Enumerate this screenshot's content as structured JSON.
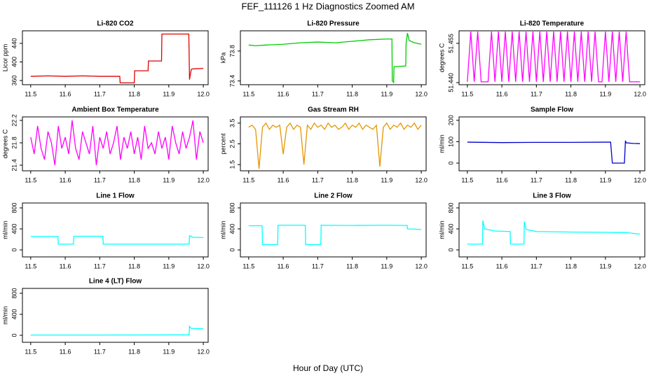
{
  "title": "FEF_111126  1 Hz Diagnostics Zoomed AM",
  "x_label": "Hour of Day (UTC)",
  "chart_data": [
    {
      "type": "line",
      "title": "Li-820 CO2",
      "y_label": "Licor ppm",
      "color": "#e00000",
      "x": [
        11.5,
        11.55,
        11.6,
        11.65,
        11.7,
        11.758,
        11.759,
        11.8,
        11.801,
        11.84,
        11.841,
        11.879,
        11.88,
        11.958,
        11.96,
        11.965,
        11.97,
        12.0
      ],
      "values": [
        369,
        370,
        369,
        370,
        369,
        369,
        355,
        355,
        381,
        381,
        402,
        402,
        460,
        460,
        362,
        384,
        385,
        386
      ],
      "xlim": [
        11.476,
        12.014
      ],
      "xticks": [
        11.5,
        11.6,
        11.7,
        11.8,
        11.9,
        {
          "value": 12,
          "label": "12.0"
        }
      ],
      "ylim": [
        351,
        467
      ],
      "yticks": [
        360,
        400,
        440
      ]
    },
    {
      "type": "line",
      "title": "Li-820 Pressure",
      "y_label": "kPa",
      "color": "#00cc00",
      "x": [
        11.5,
        11.52,
        11.55,
        11.6,
        11.65,
        11.7,
        11.75,
        11.8,
        11.85,
        11.9,
        11.915,
        11.916,
        11.92,
        11.921,
        11.955,
        11.956,
        11.96,
        11.965,
        11.98,
        12.0
      ],
      "values": [
        73.88,
        73.87,
        73.88,
        73.89,
        73.91,
        73.92,
        73.91,
        73.93,
        73.95,
        73.96,
        73.96,
        73.4,
        73.38,
        73.59,
        73.6,
        73.9,
        74.04,
        73.94,
        73.91,
        73.89
      ],
      "xlim": [
        11.476,
        12.014
      ],
      "xticks": [
        11.5,
        11.6,
        11.7,
        11.8,
        11.9,
        {
          "value": 12,
          "label": "12.0"
        }
      ],
      "ylim": [
        73.35,
        74.07
      ],
      "yticks": [
        73.4,
        73.8
      ]
    },
    {
      "type": "line",
      "title": "Li-820 Temperature",
      "y_label": "degrees C",
      "color": "#ff00ff",
      "x": [
        11.5,
        11.51,
        11.52,
        11.53,
        11.54,
        11.55,
        11.56,
        11.57,
        11.58,
        11.59,
        11.6,
        11.61,
        11.62,
        11.63,
        11.64,
        11.65,
        11.66,
        11.67,
        11.68,
        11.69,
        11.7,
        11.71,
        11.72,
        11.73,
        11.74,
        11.75,
        11.76,
        11.77,
        11.78,
        11.79,
        11.8,
        11.81,
        11.82,
        11.83,
        11.84,
        11.85,
        11.86,
        11.87,
        11.88,
        11.89,
        11.9,
        11.91,
        11.92,
        11.93,
        11.94,
        11.95,
        11.96,
        11.97,
        11.98,
        11.99,
        12.0
      ],
      "values": [
        51.4403,
        51.4595,
        51.4403,
        51.4595,
        51.4403,
        51.4403,
        51.4403,
        51.4595,
        51.4403,
        51.4595,
        51.4403,
        51.4595,
        51.4403,
        51.4595,
        51.4403,
        51.4595,
        51.4403,
        51.4595,
        51.4403,
        51.4595,
        51.4403,
        51.4595,
        51.4403,
        51.4595,
        51.4403,
        51.4595,
        51.4403,
        51.4595,
        51.4403,
        51.4595,
        51.4403,
        51.4595,
        51.4403,
        51.4595,
        51.4403,
        51.4595,
        51.4403,
        51.4595,
        51.4403,
        51.4403,
        51.4595,
        51.4403,
        51.4595,
        51.4403,
        51.4595,
        51.4403,
        51.4595,
        51.4403,
        51.4403,
        51.4403,
        51.4403
      ],
      "xlim": [
        11.476,
        12.014
      ],
      "xticks": [
        11.5,
        11.6,
        11.7,
        11.8,
        11.9,
        {
          "value": 12,
          "label": "12.0"
        }
      ],
      "ylim": [
        51.4392,
        51.4598
      ],
      "yticks": [
        {
          "value": 51.44,
          "label": "51.440"
        },
        51.455
      ]
    },
    {
      "type": "line",
      "title": "Ambient Box Temperature",
      "y_label": "degrees C",
      "color": "#ff00ff",
      "x": [
        11.5,
        11.51,
        11.52,
        11.53,
        11.54,
        11.55,
        11.56,
        11.57,
        11.58,
        11.59,
        11.6,
        11.61,
        11.62,
        11.63,
        11.64,
        11.65,
        11.66,
        11.67,
        11.68,
        11.69,
        11.7,
        11.71,
        11.72,
        11.73,
        11.74,
        11.75,
        11.76,
        11.77,
        11.78,
        11.79,
        11.8,
        11.81,
        11.82,
        11.83,
        11.84,
        11.85,
        11.86,
        11.87,
        11.88,
        11.89,
        11.9,
        11.91,
        11.92,
        11.93,
        11.94,
        11.95,
        11.96,
        11.97,
        11.98,
        11.99,
        12.0
      ],
      "values": [
        21.9,
        21.6,
        22.1,
        21.7,
        21.5,
        22.0,
        21.8,
        21.4,
        22.1,
        21.7,
        21.9,
        21.6,
        22.2,
        21.7,
        21.5,
        22.0,
        21.8,
        21.6,
        22.1,
        21.4,
        21.9,
        21.7,
        22.0,
        21.6,
        21.8,
        22.1,
        21.5,
        21.9,
        21.7,
        22.0,
        21.6,
        21.9,
        21.5,
        22.1,
        21.7,
        21.8,
        21.6,
        22.0,
        21.7,
        21.9,
        21.5,
        22.1,
        21.8,
        21.6,
        22.0,
        21.7,
        21.9,
        22.2,
        21.5,
        22.0,
        21.8
      ],
      "xlim": [
        11.476,
        12.014
      ],
      "xticks": [
        11.5,
        11.6,
        11.7,
        11.8,
        11.9,
        {
          "value": 12,
          "label": "12.0"
        }
      ],
      "ylim": [
        21.3,
        22.2625
      ],
      "yticks": [
        21.4,
        21.8,
        22.2
      ]
    },
    {
      "type": "line",
      "title": "Gas Stream RH",
      "y_label": "percent",
      "color": "#e69500",
      "x": [
        11.5,
        11.51,
        11.52,
        11.53,
        11.54,
        11.55,
        11.56,
        11.57,
        11.58,
        11.59,
        11.6,
        11.61,
        11.62,
        11.63,
        11.64,
        11.65,
        11.66,
        11.67,
        11.68,
        11.69,
        11.7,
        11.71,
        11.72,
        11.73,
        11.74,
        11.75,
        11.76,
        11.77,
        11.78,
        11.79,
        11.8,
        11.81,
        11.82,
        11.83,
        11.84,
        11.85,
        11.86,
        11.87,
        11.88,
        11.89,
        11.9,
        11.91,
        11.92,
        11.93,
        11.94,
        11.95,
        11.96,
        11.97,
        11.98,
        11.99,
        12.0
      ],
      "values": [
        3.3,
        3.4,
        3.2,
        1.3,
        3.3,
        3.5,
        3.2,
        3.4,
        3.3,
        3.4,
        2.0,
        3.3,
        3.5,
        3.2,
        3.4,
        3.3,
        1.5,
        3.4,
        3.2,
        3.5,
        3.3,
        3.4,
        3.2,
        3.5,
        3.3,
        3.4,
        3.2,
        3.3,
        3.5,
        3.2,
        3.4,
        3.3,
        3.5,
        3.2,
        3.4,
        3.3,
        3.2,
        3.4,
        1.4,
        3.3,
        3.5,
        3.2,
        3.4,
        3.3,
        3.5,
        3.2,
        3.4,
        3.3,
        3.5,
        3.2,
        3.4
      ],
      "xlim": [
        11.476,
        12.014
      ],
      "xticks": [
        11.5,
        11.6,
        11.7,
        11.8,
        11.9,
        {
          "value": 12,
          "label": "12.0"
        }
      ],
      "ylim": [
        1.2,
        3.8
      ],
      "yticks": [
        1.5,
        2.5,
        3.5
      ]
    },
    {
      "type": "line",
      "title": "Sample Flow",
      "y_label": "ml/min",
      "color": "#0000cc",
      "x": [
        11.5,
        11.6,
        11.7,
        11.8,
        11.9,
        11.915,
        11.92,
        11.955,
        11.958,
        11.96,
        11.98,
        12.0
      ],
      "values": [
        98,
        96,
        97,
        97,
        98,
        98,
        0,
        0,
        105,
        95,
        92,
        91
      ],
      "xlim": [
        11.476,
        12.014
      ],
      "xticks": [
        11.5,
        11.6,
        11.7,
        11.8,
        11.9,
        {
          "value": 12,
          "label": "12.0"
        }
      ],
      "ylim": [
        -36,
        216
      ],
      "yticks": [
        0,
        100,
        200
      ]
    },
    {
      "type": "line",
      "title": "Line 1 Flow",
      "y_label": "ml/min",
      "color": "#00ffff",
      "x": [
        11.5,
        11.579,
        11.58,
        11.624,
        11.625,
        11.709,
        11.71,
        11.959,
        11.96,
        11.97,
        12.0
      ],
      "values": [
        255,
        255,
        110,
        110,
        260,
        260,
        110,
        110,
        270,
        240,
        235
      ],
      "xlim": [
        11.476,
        12.014
      ],
      "xticks": [
        11.5,
        11.6,
        11.7,
        11.8,
        11.9,
        {
          "value": 12,
          "label": "12.0"
        }
      ],
      "ylim": [
        -133,
        893
      ],
      "yticks": [
        0,
        400,
        800
      ]
    },
    {
      "type": "line",
      "title": "Line 2 Flow",
      "y_label": "ml/min",
      "color": "#00ffff",
      "x": [
        11.5,
        11.539,
        11.54,
        11.584,
        11.585,
        11.664,
        11.665,
        11.709,
        11.71,
        11.8,
        11.9,
        11.959,
        11.96,
        12.0
      ],
      "values": [
        460,
        460,
        100,
        100,
        470,
        470,
        100,
        100,
        470,
        465,
        470,
        465,
        400,
        390
      ],
      "xlim": [
        11.476,
        12.014
      ],
      "xticks": [
        11.5,
        11.6,
        11.7,
        11.8,
        11.9,
        {
          "value": 12,
          "label": "12.0"
        }
      ],
      "ylim": [
        -133,
        893
      ],
      "yticks": [
        0,
        400,
        800
      ]
    },
    {
      "type": "line",
      "title": "Line 3 Flow",
      "y_label": "ml/min",
      "color": "#00ffff",
      "x": [
        11.5,
        11.544,
        11.545,
        11.55,
        11.58,
        11.624,
        11.625,
        11.664,
        11.665,
        11.67,
        11.7,
        11.8,
        11.9,
        11.96,
        12.0
      ],
      "values": [
        110,
        110,
        560,
        400,
        360,
        350,
        110,
        110,
        540,
        390,
        350,
        340,
        335,
        330,
        300
      ],
      "xlim": [
        11.476,
        12.014
      ],
      "xticks": [
        11.5,
        11.6,
        11.7,
        11.8,
        11.9,
        {
          "value": 12,
          "label": "12.0"
        }
      ],
      "ylim": [
        -133,
        893
      ],
      "yticks": [
        0,
        400,
        800
      ]
    },
    {
      "type": "line",
      "title": "Line 4 (LT) Flow",
      "y_label": "ml/min",
      "color": "#00ffff",
      "x": [
        11.5,
        11.7,
        11.959,
        11.96,
        11.965,
        12.0
      ],
      "values": [
        5,
        5,
        8,
        170,
        130,
        125
      ],
      "xlim": [
        11.476,
        12.014
      ],
      "xticks": [
        11.5,
        11.6,
        11.7,
        11.8,
        11.9,
        {
          "value": 12,
          "label": "12.0"
        }
      ],
      "ylim": [
        -133,
        893
      ],
      "yticks": [
        0,
        400,
        800
      ]
    }
  ]
}
